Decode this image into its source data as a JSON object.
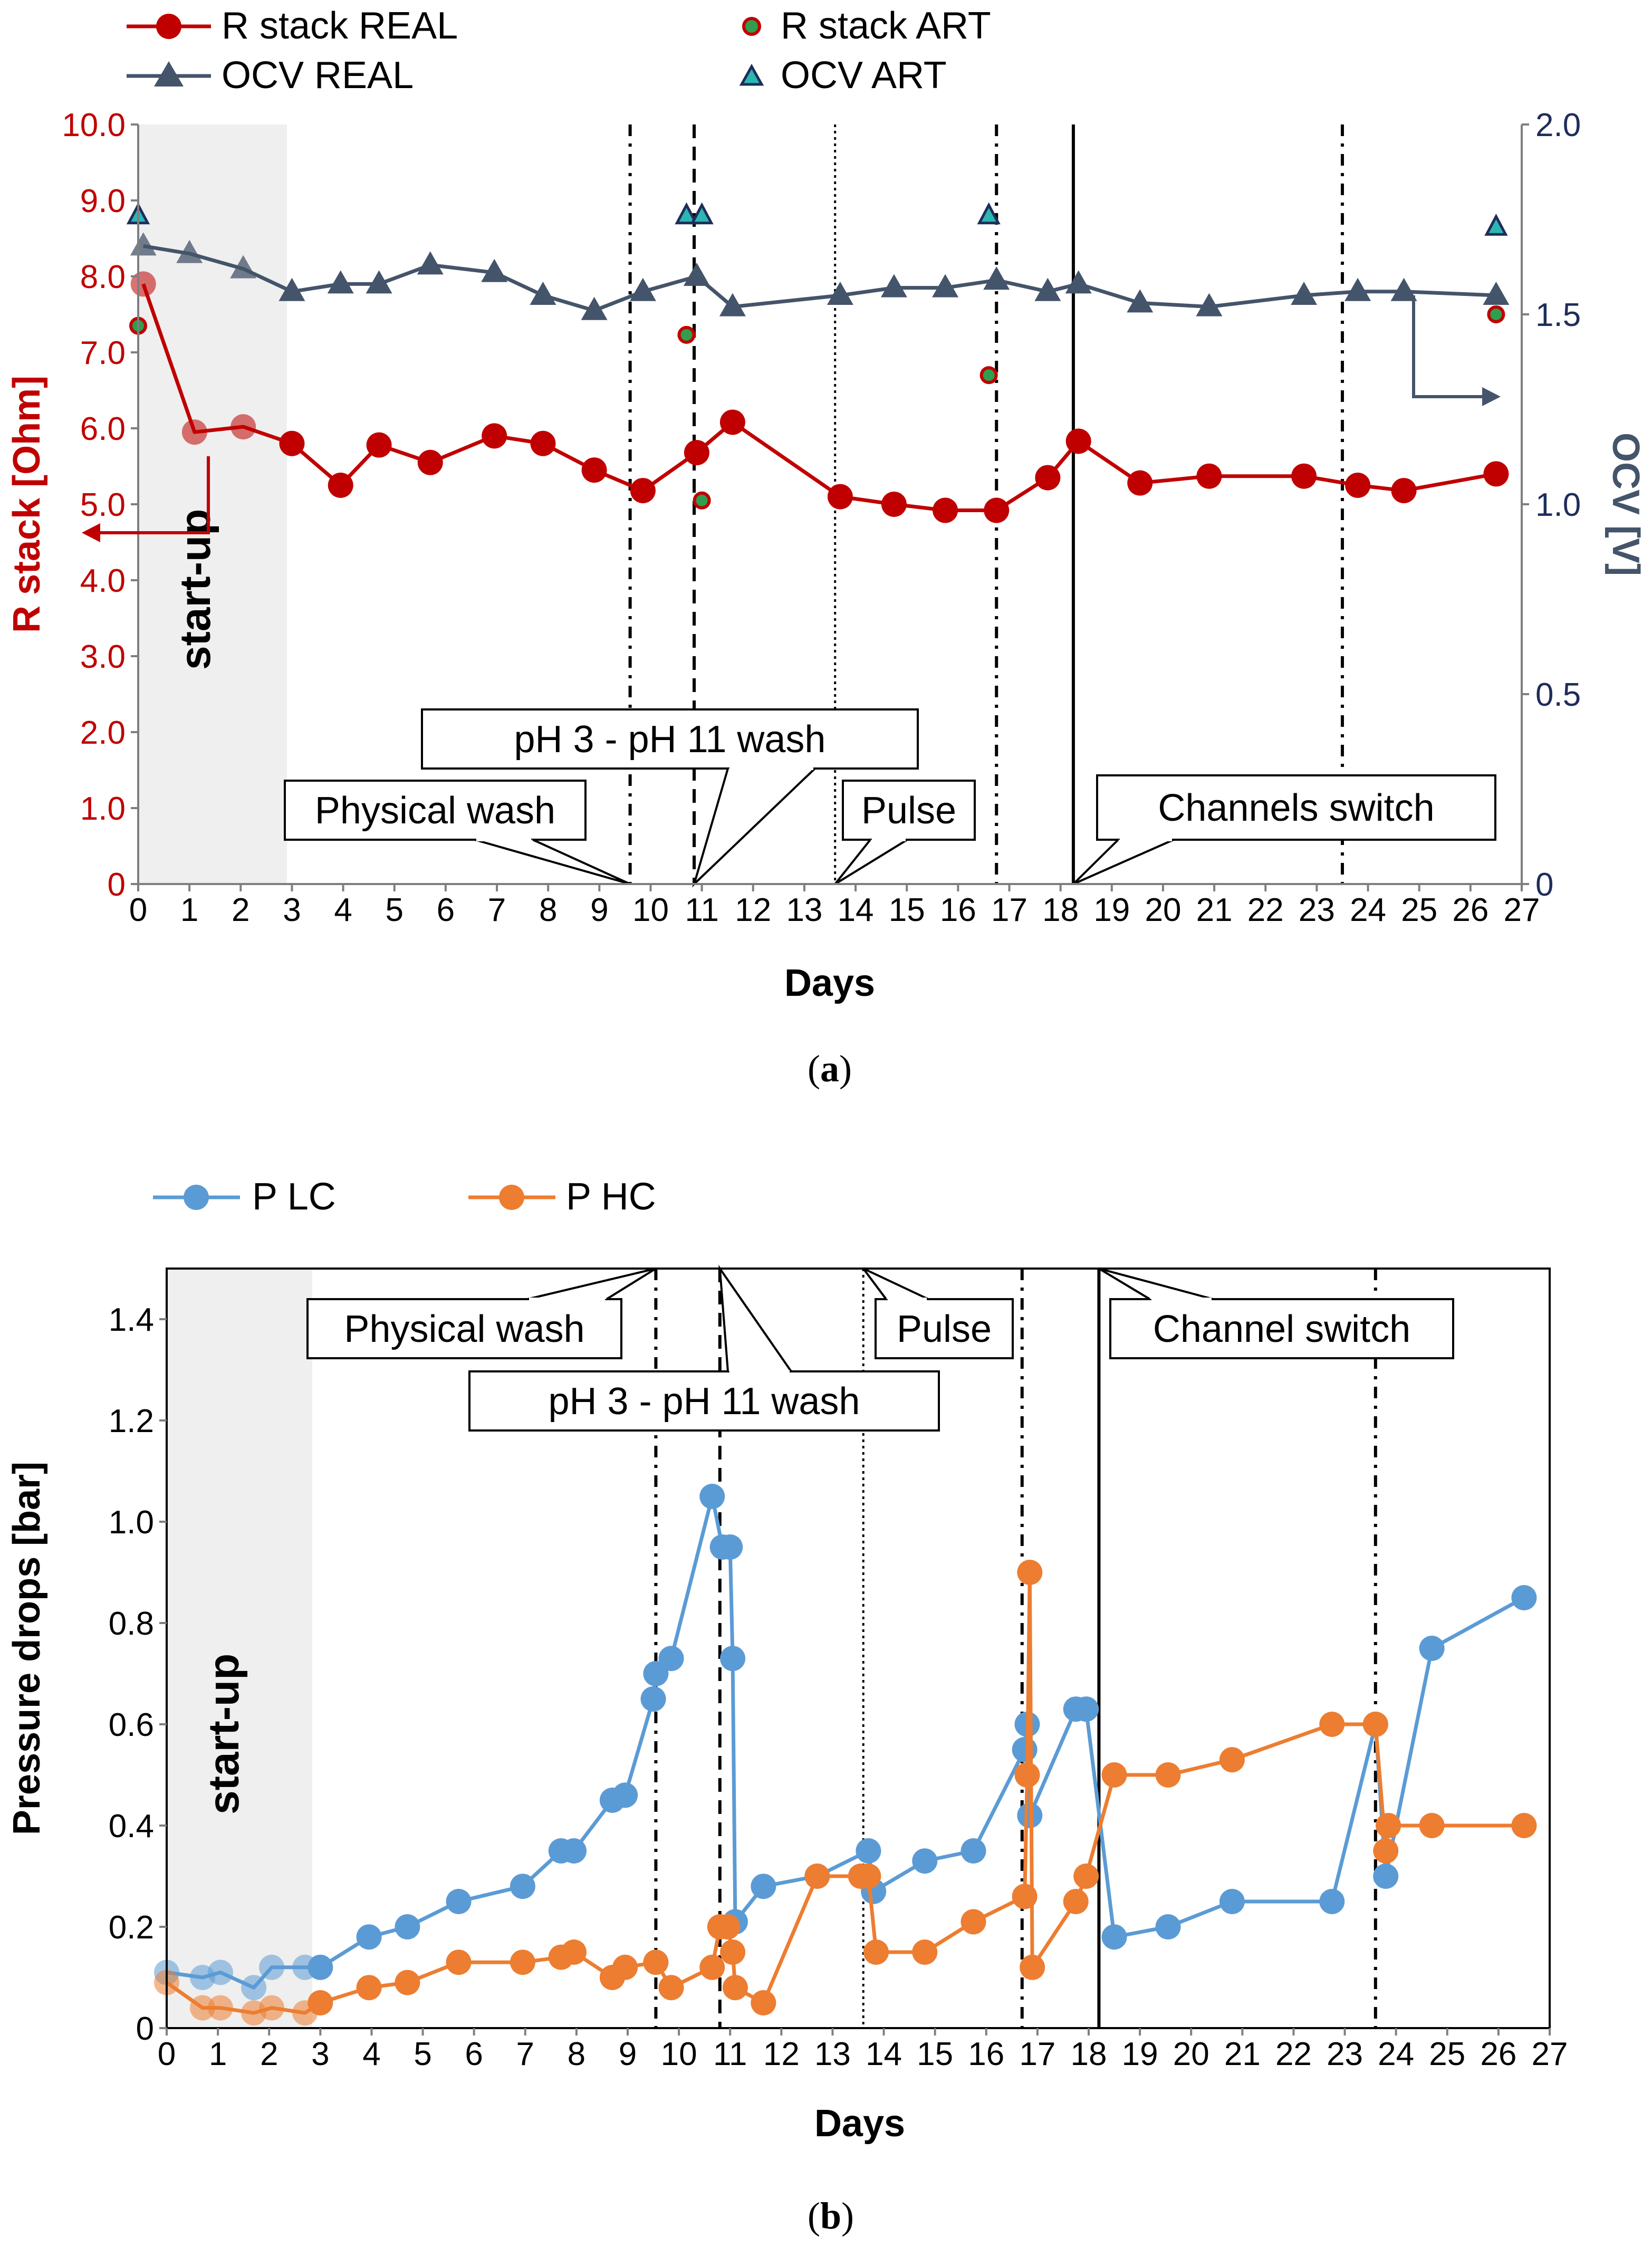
{
  "chart_data": [
    {
      "panel": "a",
      "type": "line",
      "caption": "(a)",
      "xlabel": "Days",
      "ylabel_left": "R stack [Ohm]",
      "ylabel_right": "OCV [V]",
      "xlim": [
        0,
        27
      ],
      "ylim_left": [
        0,
        10
      ],
      "ylim_right": [
        0,
        2
      ],
      "x_ticks": [
        "0",
        "1",
        "2",
        "3",
        "4",
        "5",
        "6",
        "7",
        "8",
        "9",
        "10",
        "11",
        "12",
        "13",
        "14",
        "15",
        "16",
        "17",
        "18",
        "19",
        "20",
        "21",
        "22",
        "23",
        "24",
        "25",
        "26",
        "27"
      ],
      "y_ticks_left": [
        "0",
        "1.0",
        "2.0",
        "3.0",
        "4.0",
        "5.0",
        "6.0",
        "7.0",
        "8.0",
        "9.0",
        "10.0"
      ],
      "y_ticks_right": [
        "0",
        "0.5",
        "1.0",
        "1.5",
        "2.0"
      ],
      "startup": {
        "label": "start-up",
        "x_range": [
          0,
          2.9
        ]
      },
      "legend": [
        {
          "label": "R stack REAL",
          "color": "#c00000",
          "marker": "circle"
        },
        {
          "label": "R stack ART",
          "color": "#c00000",
          "marker": "dot-green"
        },
        {
          "label": "OCV REAL",
          "color": "#44546a",
          "marker": "triangle"
        },
        {
          "label": "OCV ART",
          "color": "#1f2d5a",
          "marker": "triangle-cyan"
        }
      ],
      "series": [
        {
          "name": "R stack REAL",
          "axis": "left",
          "color": "#c00000",
          "x": [
            0.1,
            1.1,
            2.05,
            3.0,
            3.95,
            4.7,
            5.7,
            6.95,
            7.9,
            8.9,
            9.85,
            10.9,
            11.6,
            13.7,
            14.75,
            15.75,
            16.75,
            17.75,
            18.35,
            19.55,
            20.9,
            22.75,
            23.8,
            24.7,
            26.5
          ],
          "y": [
            7.9,
            5.95,
            6.02,
            5.8,
            5.25,
            5.78,
            5.55,
            5.9,
            5.8,
            5.45,
            5.18,
            5.68,
            6.08,
            5.1,
            5.0,
            4.92,
            4.92,
            5.35,
            5.83,
            5.28,
            5.37,
            5.37,
            5.25,
            5.18,
            5.4
          ]
        },
        {
          "name": "R stack ART",
          "axis": "left",
          "color": "#c00000",
          "style": "markers",
          "x": [
            0.0,
            10.7,
            11.0,
            16.6,
            26.5
          ],
          "y": [
            7.35,
            7.23,
            5.05,
            6.7,
            7.5
          ]
        },
        {
          "name": "OCV REAL",
          "axis": "right",
          "color": "#44546a",
          "x": [
            0.1,
            1.0,
            2.05,
            3.0,
            3.95,
            4.7,
            5.7,
            6.95,
            7.9,
            8.9,
            9.85,
            10.9,
            11.6,
            13.7,
            14.75,
            15.75,
            16.75,
            17.75,
            18.35,
            19.55,
            20.9,
            22.75,
            23.8,
            24.7,
            26.5
          ],
          "y": [
            1.68,
            1.66,
            1.62,
            1.56,
            1.58,
            1.58,
            1.63,
            1.61,
            1.55,
            1.51,
            1.56,
            1.6,
            1.52,
            1.55,
            1.57,
            1.57,
            1.59,
            1.56,
            1.58,
            1.53,
            1.52,
            1.55,
            1.56,
            1.56,
            1.55
          ]
        },
        {
          "name": "OCV ART",
          "axis": "right",
          "color": "#1f2d5a",
          "style": "markers",
          "x": [
            0.0,
            10.7,
            11.0,
            16.6,
            26.5
          ],
          "y": [
            1.76,
            1.76,
            1.76,
            1.76,
            1.73
          ]
        }
      ],
      "events": [
        {
          "label": "Physical wash",
          "x": 9.6,
          "style": "dashdot"
        },
        {
          "label": "pH 3 - pH 11 wash",
          "x": 10.85,
          "style": "dashed"
        },
        {
          "label": "Pulse",
          "x": 13.6,
          "style": "dotted"
        },
        {
          "label": "",
          "x": 16.75,
          "style": "dashdot"
        },
        {
          "label": "Channels switch",
          "x": 18.25,
          "style": "solid"
        },
        {
          "label": "",
          "x": 23.5,
          "style": "dashdot"
        }
      ]
    },
    {
      "panel": "b",
      "type": "line",
      "caption": "(b)",
      "xlabel": "Days",
      "ylabel": "Pressure drops [bar]",
      "xlim": [
        0,
        27
      ],
      "ylim": [
        0,
        1.5
      ],
      "x_ticks": [
        "0",
        "1",
        "2",
        "3",
        "4",
        "5",
        "6",
        "7",
        "8",
        "9",
        "10",
        "11",
        "12",
        "13",
        "14",
        "15",
        "16",
        "17",
        "18",
        "19",
        "20",
        "21",
        "22",
        "23",
        "24",
        "25",
        "26",
        "27"
      ],
      "y_ticks": [
        "0",
        "0.2",
        "0.4",
        "0.6",
        "0.8",
        "1.0",
        "1.2",
        "1.4"
      ],
      "startup": {
        "label": "start-up",
        "x_range": [
          0,
          2.9
        ]
      },
      "legend": [
        {
          "label": "P LC",
          "color": "#5b9bd5",
          "marker": "circle"
        },
        {
          "label": "P HC",
          "color": "#ed7d31",
          "marker": "circle"
        }
      ],
      "series": [
        {
          "name": "P LC",
          "color": "#5b9bd5",
          "x": [
            0.0,
            0.7,
            1.05,
            1.7,
            2.05,
            2.7,
            3.0,
            3.95,
            4.7,
            5.7,
            6.95,
            7.7,
            7.95,
            8.7,
            8.95,
            9.5,
            9.55,
            9.85,
            10.65,
            10.85,
            11.0,
            11.05,
            11.1,
            11.65,
            12.7,
            13.7,
            13.8,
            14.8,
            15.75,
            16.75,
            16.8,
            16.85,
            17.75,
            17.95,
            18.5,
            19.55,
            20.8,
            22.75,
            23.6,
            23.8,
            24.7,
            26.5
          ],
          "y": [
            0.11,
            0.1,
            0.11,
            0.08,
            0.12,
            0.12,
            0.12,
            0.18,
            0.2,
            0.25,
            0.28,
            0.35,
            0.35,
            0.45,
            0.46,
            0.65,
            0.7,
            0.73,
            1.05,
            0.95,
            0.95,
            0.73,
            0.21,
            0.28,
            0.3,
            0.35,
            0.27,
            0.33,
            0.35,
            0.55,
            0.6,
            0.42,
            0.63,
            0.63,
            0.18,
            0.2,
            0.25,
            0.25,
            0.6,
            0.3,
            0.75,
            0.85
          ]
        },
        {
          "name": "P HC",
          "color": "#ed7d31",
          "x": [
            0.0,
            0.7,
            1.05,
            1.7,
            2.05,
            2.7,
            3.0,
            3.95,
            4.7,
            5.7,
            6.95,
            7.7,
            7.95,
            8.7,
            8.95,
            9.55,
            9.85,
            10.65,
            10.8,
            10.95,
            11.05,
            11.1,
            11.65,
            12.7,
            13.55,
            13.7,
            13.85,
            14.8,
            15.75,
            16.75,
            16.8,
            16.85,
            16.9,
            17.75,
            17.95,
            18.5,
            19.55,
            20.8,
            22.75,
            23.6,
            23.8,
            23.85,
            24.7,
            26.5
          ],
          "y": [
            0.09,
            0.04,
            0.04,
            0.03,
            0.04,
            0.03,
            0.05,
            0.08,
            0.09,
            0.13,
            0.13,
            0.14,
            0.15,
            0.1,
            0.12,
            0.13,
            0.08,
            0.12,
            0.2,
            0.2,
            0.15,
            0.08,
            0.05,
            0.3,
            0.3,
            0.3,
            0.15,
            0.15,
            0.21,
            0.26,
            0.5,
            0.9,
            0.12,
            0.25,
            0.3,
            0.5,
            0.5,
            0.53,
            0.6,
            0.6,
            0.35,
            0.4,
            0.4,
            0.4
          ]
        }
      ],
      "events": [
        {
          "label": "Physical wash",
          "x": 9.55,
          "style": "dashdot"
        },
        {
          "label": "pH 3 - pH 11 wash",
          "x": 10.8,
          "style": "dashed"
        },
        {
          "label": "Pulse",
          "x": 13.6,
          "style": "dotted"
        },
        {
          "label": "",
          "x": 16.7,
          "style": "dashdot"
        },
        {
          "label": "Channel switch",
          "x": 18.2,
          "style": "solid"
        },
        {
          "label": "",
          "x": 23.6,
          "style": "dashdot"
        }
      ]
    }
  ]
}
